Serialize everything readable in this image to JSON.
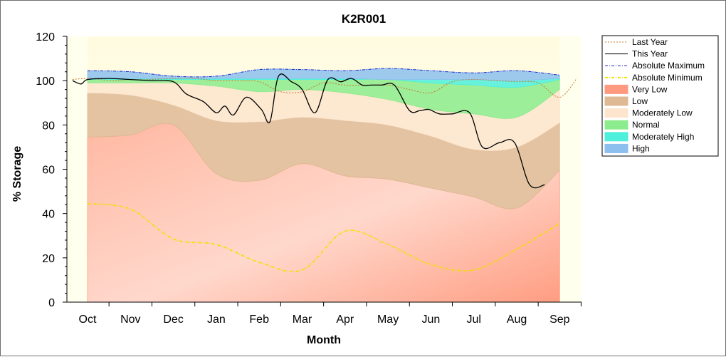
{
  "chart_data": {
    "type": "area",
    "title": "K2R001",
    "xlabel": "Month",
    "ylabel": "% Storage",
    "ylim": [
      0,
      120
    ],
    "yticks": [
      0,
      20,
      40,
      60,
      80,
      100,
      120
    ],
    "categories": [
      "Oct",
      "Nov",
      "Dec",
      "Jan",
      "Feb",
      "Mar",
      "Apr",
      "May",
      "Jun",
      "Jul",
      "Aug",
      "Sep"
    ],
    "grid": false,
    "legend_position": "right",
    "bands": [
      {
        "name": "Very Low",
        "color": "#ff9a80",
        "lower": [
          0,
          0,
          0,
          0,
          0,
          0,
          0,
          0,
          0,
          0,
          0,
          0
        ],
        "upper": [
          74.5,
          75.5,
          80,
          58,
          55,
          62.5,
          57,
          55.5,
          51.5,
          47.5,
          42.5,
          59.5
        ]
      },
      {
        "name": "Low",
        "color": "#deb994",
        "lower": [
          74.5,
          75.5,
          80,
          58,
          55,
          62.5,
          57,
          55.5,
          51.5,
          47.5,
          42.5,
          59.5
        ],
        "upper": [
          94.5,
          93.5,
          89,
          82,
          81.5,
          83.5,
          82,
          80,
          75,
          69,
          70,
          81
        ]
      },
      {
        "name": "Moderately Low",
        "color": "#fde4cc",
        "lower": [
          94.5,
          93.5,
          89,
          82,
          81.5,
          83.5,
          82,
          80,
          75,
          69,
          70,
          81
        ],
        "upper": [
          99,
          99,
          99,
          97.5,
          95,
          96,
          94.5,
          91.5,
          87,
          85,
          83.5,
          96
        ]
      },
      {
        "name": "Normal",
        "color": "#8ceb8c",
        "lower": [
          99,
          99,
          99,
          97.5,
          95,
          96,
          94.5,
          91.5,
          87,
          85,
          83.5,
          96
        ],
        "upper": [
          100.5,
          100.5,
          100.5,
          100.5,
          100.5,
          100.5,
          100.5,
          100.5,
          99,
          98,
          97,
          100.5
        ]
      },
      {
        "name": "Moderately High",
        "color": "#4ef0dc",
        "lower": [
          100.5,
          100.5,
          100.5,
          100.5,
          100.5,
          100.5,
          100.5,
          100.5,
          99,
          98,
          97,
          100.5
        ],
        "upper": [
          101,
          101,
          101,
          101,
          101,
          101,
          101,
          100.5,
          100.5,
          100.5,
          100,
          101
        ]
      },
      {
        "name": "High",
        "color": "#8cbfee",
        "lower": [
          101,
          101,
          101,
          101,
          101,
          101,
          101,
          100.5,
          100.5,
          100.5,
          100,
          101
        ],
        "upper": [
          104.5,
          104,
          102,
          102,
          105,
          105,
          104.5,
          105.5,
          104.5,
          103.5,
          104.5,
          102.5
        ]
      }
    ],
    "series": [
      {
        "name": "Last Year",
        "color": "#c87832",
        "style": "dotted",
        "x": [
          -0.35,
          0,
          0.6,
          1,
          1.4,
          2,
          2.5,
          3,
          3.5,
          4,
          4.5,
          5,
          5.5,
          6,
          6.5,
          7,
          7.5,
          8,
          8.5,
          9,
          9.5,
          10,
          10.5,
          11,
          11.4
        ],
        "values": [
          100.5,
          101,
          100,
          100.5,
          100.5,
          101,
          101,
          100,
          100,
          99.5,
          95,
          95,
          99,
          98,
          98,
          98,
          96,
          94.5,
          99.5,
          100.5,
          100,
          99.5,
          99,
          92.5,
          101
        ]
      },
      {
        "name": "This Year",
        "color": "#000000",
        "style": "solid",
        "x": [
          -0.35,
          -0.15,
          0,
          0.5,
          1,
          1.5,
          2,
          2.3,
          2.7,
          3,
          3.2,
          3.4,
          3.7,
          4.05,
          4.25,
          4.45,
          4.75,
          5,
          5.3,
          5.6,
          5.9,
          6.15,
          6.4,
          6.6,
          6.85,
          7.15,
          7.5,
          7.75,
          7.95,
          8.2,
          8.5,
          8.9,
          9.2,
          9.6,
          9.95,
          10.3,
          10.65,
          10.85,
          11
        ],
        "values": [
          100,
          98.5,
          100.5,
          101,
          100.5,
          100,
          99.5,
          94,
          90.5,
          85.5,
          88.5,
          84.5,
          92.5,
          87,
          81.5,
          102,
          99.5,
          96,
          85.5,
          100.5,
          99.5,
          101,
          98,
          98,
          98,
          98,
          86.5,
          86.5,
          87,
          85,
          85,
          85.5,
          70,
          72,
          72,
          53,
          53,
          null,
          null
        ]
      },
      {
        "name": "Absolute Maximum",
        "color": "#2020c8",
        "style": "dashdot",
        "x": [
          0,
          1,
          2,
          3,
          4,
          5,
          6,
          7,
          8,
          9,
          10,
          11
        ],
        "values": [
          104.5,
          104,
          102,
          102,
          105,
          105,
          104.5,
          105.5,
          104.5,
          103.5,
          104.5,
          102.5
        ]
      },
      {
        "name": "Absolute Minimum",
        "color": "#f2e000",
        "style": "dashdot",
        "x": [
          0,
          1,
          2,
          3,
          4,
          5,
          6,
          7,
          8,
          9,
          10,
          11
        ],
        "values": [
          44.5,
          42,
          28.5,
          26,
          18,
          14.5,
          32,
          26,
          17,
          14.5,
          24,
          35.5
        ]
      }
    ],
    "legend_order": [
      "Last Year",
      "This Year",
      "Absolute Maximum",
      "Absolute Minimum",
      "Very Low",
      "Low",
      "Moderately Low",
      "Normal",
      "Moderately High",
      "High"
    ]
  }
}
